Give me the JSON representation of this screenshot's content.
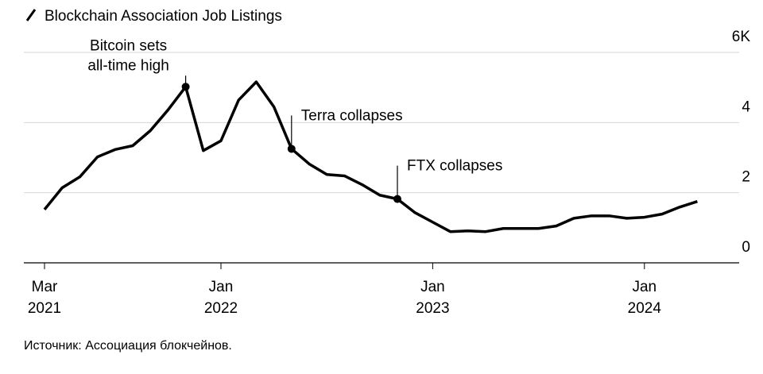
{
  "chart_data": {
    "type": "line",
    "title": "Blockchain Association Job Listings",
    "source": "Источник: Ассоциация блокчейнов.",
    "x": [
      "2021-03",
      "2021-04",
      "2021-05",
      "2021-06",
      "2021-07",
      "2021-08",
      "2021-09",
      "2021-10",
      "2021-11",
      "2021-12",
      "2022-01",
      "2022-02",
      "2022-03",
      "2022-04",
      "2022-05",
      "2022-06",
      "2022-07",
      "2022-08",
      "2022-09",
      "2022-10",
      "2022-11",
      "2022-12",
      "2023-01",
      "2023-02",
      "2023-03",
      "2023-04",
      "2023-05",
      "2023-06",
      "2023-07",
      "2023-08",
      "2023-09",
      "2023-10",
      "2023-11",
      "2023-12",
      "2024-01",
      "2024-02",
      "2024-03",
      "2024-04"
    ],
    "series": [
      {
        "name": "Blockchain Association Job Listings",
        "color": "#000000",
        "values": [
          1.52,
          2.14,
          2.45,
          3.02,
          3.23,
          3.34,
          3.77,
          4.36,
          5.02,
          3.2,
          3.48,
          4.64,
          5.16,
          4.45,
          3.25,
          2.82,
          2.52,
          2.48,
          2.23,
          1.93,
          1.82,
          1.43,
          1.16,
          0.89,
          0.91,
          0.89,
          0.98,
          0.98,
          0.98,
          1.05,
          1.27,
          1.34,
          1.34,
          1.27,
          1.3,
          1.39,
          1.59,
          1.75
        ]
      }
    ],
    "ylim": [
      0,
      6
    ],
    "yticks": [
      0,
      2,
      4,
      {
        "value": 6,
        "label": "6K"
      }
    ],
    "xticks": [
      {
        "value": "2021-03",
        "label": [
          "Mar",
          "2021"
        ]
      },
      {
        "value": "2022-01",
        "label": [
          "Jan",
          "2022"
        ]
      },
      {
        "value": "2023-01",
        "label": [
          "Jan",
          "2023"
        ]
      },
      {
        "value": "2024-01",
        "label": [
          "Jan",
          "2024"
        ]
      }
    ],
    "grid": true,
    "annotations": [
      {
        "x": "2021-11",
        "text": [
          "Bitcoin sets",
          "all-time high"
        ]
      },
      {
        "x": "2022-05",
        "text": [
          "Terra collapses"
        ]
      },
      {
        "x": "2022-11",
        "text": [
          "FTX collapses"
        ]
      }
    ]
  }
}
